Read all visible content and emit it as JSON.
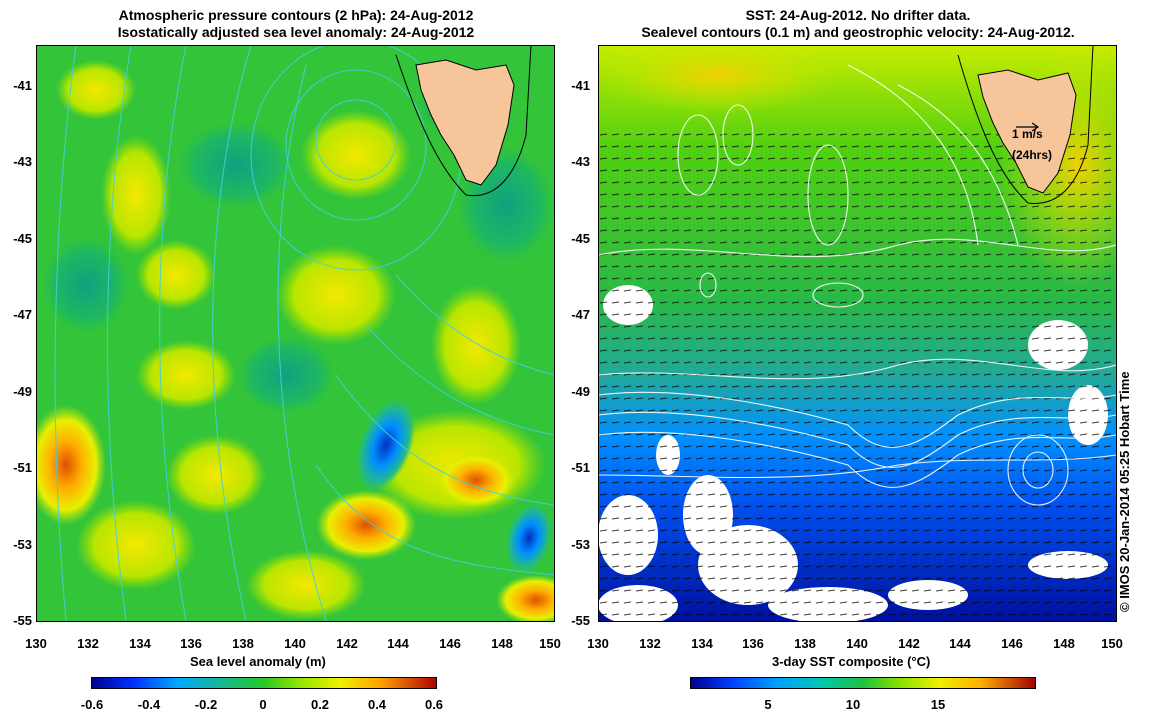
{
  "left_panel": {
    "title_line1": "Atmospheric pressure contours (2 hPa): 24-Aug-2012",
    "title_line2": "Isostatically adjusted sea level anomaly: 24-Aug-2012",
    "x_ticks": [
      "130",
      "132",
      "134",
      "136",
      "138",
      "140",
      "142",
      "144",
      "146",
      "148",
      "150"
    ],
    "y_ticks": [
      "-41",
      "-43",
      "-45",
      "-47",
      "-49",
      "-51",
      "-53",
      "-55"
    ],
    "colorbar_label": "Sea level anomaly (m)",
    "colorbar_ticks": [
      "-0.6",
      "-0.4",
      "-0.2",
      "0",
      "0.2",
      "0.4",
      "0.6"
    ]
  },
  "right_panel": {
    "title_line1": "SST: 24-Aug-2012. No drifter data.",
    "title_line2": "Sealevel contours (0.1 m) and geostrophic velocity: 24-Aug-2012.",
    "x_ticks": [
      "130",
      "132",
      "134",
      "136",
      "138",
      "140",
      "142",
      "144",
      "146",
      "148",
      "150"
    ],
    "y_ticks": [
      "-41",
      "-43",
      "-45",
      "-47",
      "-49",
      "-51",
      "-53",
      "-55"
    ],
    "colorbar_label": "3-day SST composite (°C)",
    "colorbar_ticks": [
      "5",
      "10",
      "15"
    ],
    "scale_arrow_label1": "1 m/s",
    "scale_arrow_label2": "(24hrs)"
  },
  "copyright": "© IMOS 20-Jan-2014 05:25 Hobart Time",
  "colors": {
    "land": "#f7c59a",
    "sla_colormap": [
      "#00008f",
      "#0050ff",
      "#00c8ff",
      "#1fb87a",
      "#28c828",
      "#96e600",
      "#f0f000",
      "#ffa000",
      "#e03000",
      "#b00000"
    ],
    "sst_colormap": [
      "#00008f",
      "#0040ff",
      "#00a0ff",
      "#00c8b0",
      "#20c040",
      "#80e000",
      "#f0f000",
      "#ffb000",
      "#e04000",
      "#a00000"
    ],
    "contour": "#40d0e0"
  }
}
